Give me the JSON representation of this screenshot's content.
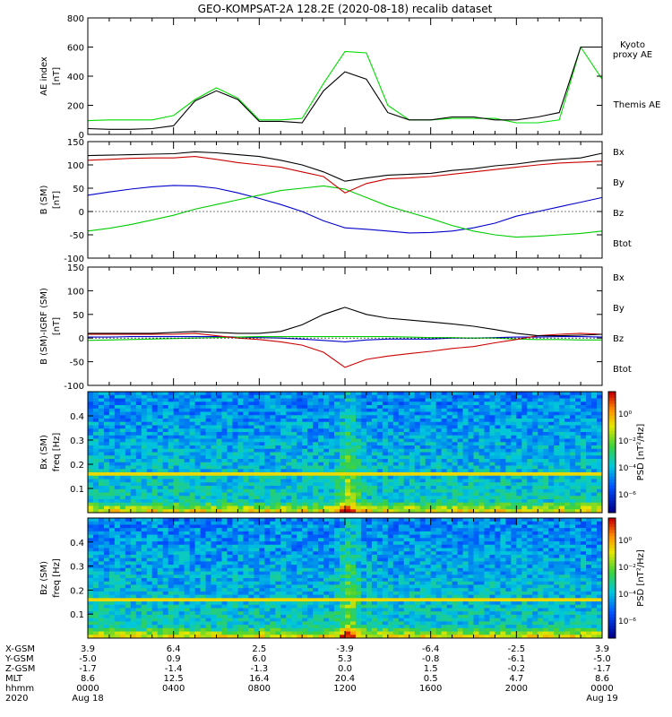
{
  "title": "GEO-KOMPSAT-2A 128.2E (2020-08-18) recalib dataset",
  "chart_data": [
    {
      "type": "line",
      "ylabel": [
        "AE index",
        "[nT]"
      ],
      "ylim": [
        0,
        800
      ],
      "yticks": [
        "800",
        "600",
        "400",
        "200",
        "0"
      ],
      "x_hours": [
        0,
        1,
        2,
        3,
        4,
        5,
        6,
        7,
        8,
        9,
        10,
        11,
        12,
        13,
        14,
        15,
        16,
        17,
        18,
        19,
        20,
        21,
        22,
        23,
        24
      ],
      "series": [
        {
          "name": "Kyoto proxy AE",
          "label": [
            "Kyoto",
            "proxy AE"
          ],
          "color": "#00dd00",
          "values": [
            95,
            100,
            100,
            100,
            130,
            240,
            320,
            250,
            100,
            100,
            110,
            350,
            570,
            560,
            200,
            100,
            100,
            110,
            110,
            110,
            80,
            80,
            100,
            600,
            380
          ]
        },
        {
          "name": "Themis AE",
          "label": [
            "Themis AE"
          ],
          "color": "#000000",
          "values": [
            40,
            35,
            35,
            40,
            60,
            230,
            300,
            240,
            90,
            90,
            80,
            300,
            430,
            380,
            150,
            100,
            100,
            120,
            120,
            100,
            100,
            120,
            150,
            600,
            600
          ]
        }
      ]
    },
    {
      "type": "line",
      "ylabel": [
        "B (SM)",
        "[nT]"
      ],
      "ylim": [
        -100,
        150
      ],
      "yticks": [
        "150",
        "100",
        "50",
        "0",
        "-50",
        "-100"
      ],
      "x_hours": [
        0,
        1,
        2,
        3,
        4,
        5,
        6,
        7,
        8,
        9,
        10,
        11,
        12,
        13,
        14,
        15,
        16,
        17,
        18,
        19,
        20,
        21,
        22,
        23,
        24
      ],
      "series": [
        {
          "name": "Bx",
          "color": "#0000cc",
          "values": [
            35,
            42,
            48,
            53,
            56,
            55,
            50,
            40,
            28,
            15,
            0,
            -20,
            -35,
            -38,
            -42,
            -46,
            -45,
            -42,
            -35,
            -25,
            -10,
            0,
            10,
            20,
            30
          ]
        },
        {
          "name": "By",
          "color": "#00cc00",
          "values": [
            -42,
            -36,
            -28,
            -18,
            -8,
            5,
            15,
            25,
            35,
            45,
            50,
            55,
            48,
            30,
            12,
            -2,
            -15,
            -30,
            -42,
            -50,
            -55,
            -53,
            -50,
            -47,
            -42
          ]
        },
        {
          "name": "Bz",
          "color": "#cc0000",
          "values": [
            110,
            112,
            114,
            115,
            115,
            118,
            112,
            105,
            100,
            95,
            85,
            75,
            40,
            60,
            70,
            72,
            75,
            80,
            85,
            90,
            95,
            100,
            104,
            106,
            108
          ]
        },
        {
          "name": "Btot",
          "color": "#000000",
          "values": [
            120,
            121,
            122,
            123,
            124,
            128,
            126,
            122,
            118,
            110,
            100,
            85,
            65,
            72,
            78,
            80,
            82,
            88,
            92,
            98,
            102,
            108,
            112,
            115,
            125
          ]
        }
      ]
    },
    {
      "type": "line",
      "ylabel": [
        "B (SM)-IGRF (SM)",
        "[nT]"
      ],
      "ylim": [
        -100,
        150
      ],
      "yticks": [
        "150",
        "100",
        "50",
        "0",
        "-50",
        "-100"
      ],
      "x_hours": [
        0,
        1,
        2,
        3,
        4,
        5,
        6,
        7,
        8,
        9,
        10,
        11,
        12,
        13,
        14,
        15,
        16,
        17,
        18,
        19,
        20,
        21,
        22,
        23,
        24
      ],
      "series": [
        {
          "name": "Bx",
          "color": "#0000cc",
          "values": [
            2,
            2,
            3,
            3,
            3,
            3,
            3,
            2,
            1,
            0,
            -2,
            -5,
            -8,
            -4,
            -2,
            -2,
            -2,
            0,
            0,
            1,
            2,
            2,
            3,
            3,
            2
          ]
        },
        {
          "name": "By",
          "color": "#00cc00",
          "values": [
            -5,
            -4,
            -3,
            -2,
            -1,
            0,
            1,
            2,
            3,
            3,
            3,
            3,
            3,
            3,
            3,
            2,
            1,
            1,
            0,
            0,
            -2,
            -3,
            -3,
            -4,
            -4
          ]
        },
        {
          "name": "Bz",
          "color": "#cc0000",
          "values": [
            8,
            8,
            8,
            8,
            8,
            10,
            5,
            0,
            -3,
            -8,
            -15,
            -30,
            -62,
            -45,
            -38,
            -33,
            -28,
            -22,
            -18,
            -10,
            -3,
            5,
            8,
            10,
            8
          ]
        },
        {
          "name": "Btot",
          "color": "#000000",
          "values": [
            10,
            10,
            10,
            10,
            12,
            14,
            12,
            10,
            10,
            14,
            28,
            50,
            65,
            50,
            42,
            38,
            34,
            30,
            25,
            18,
            10,
            5,
            5,
            6,
            8
          ]
        }
      ]
    },
    {
      "type": "heatmap",
      "ylabel": [
        "Bx (SM)",
        "freq [Hz]"
      ],
      "ylim": [
        0,
        0.5
      ],
      "yticks": [
        "0.4",
        "0.3",
        "0.2",
        "0.1"
      ],
      "colorbar_label": "PSD [nT²/Hz]",
      "colorbar_ticks": [
        "10⁰",
        "10⁻²",
        "10⁻⁴",
        "10⁻⁶"
      ]
    },
    {
      "type": "heatmap",
      "ylabel": [
        "Bz (SM)",
        "freq [Hz]"
      ],
      "ylim": [
        0,
        0.5
      ],
      "yticks": [
        "0.4",
        "0.3",
        "0.2",
        "0.1"
      ],
      "colorbar_label": "PSD [nT²/Hz]",
      "colorbar_ticks": [
        "10⁰",
        "10⁻²",
        "10⁻⁴",
        "10⁻⁶"
      ]
    }
  ],
  "ephemeris": {
    "row_labels": [
      "X-GSM",
      "Y-GSM",
      "Z-GSM",
      "MLT",
      "hhmm",
      "2020"
    ],
    "columns": [
      [
        "3.9",
        "-5.0",
        "-1.7",
        "8.6",
        "0000",
        "Aug 18"
      ],
      [
        "6.4",
        "0.9",
        "-1.4",
        "12.5",
        "0400",
        ""
      ],
      [
        "2.5",
        "6.0",
        "-1.3",
        "16.4",
        "0800",
        ""
      ],
      [
        "-3.9",
        "5.3",
        "0.0",
        "20.4",
        "1200",
        ""
      ],
      [
        "-6.4",
        "-0.8",
        "1.5",
        "0.5",
        "1600",
        ""
      ],
      [
        "-2.5",
        "-6.1",
        "-0.2",
        "4.7",
        "2000",
        ""
      ],
      [
        "3.9",
        "-5.0",
        "-1.7",
        "8.6",
        "0000",
        "Aug 19"
      ]
    ]
  }
}
